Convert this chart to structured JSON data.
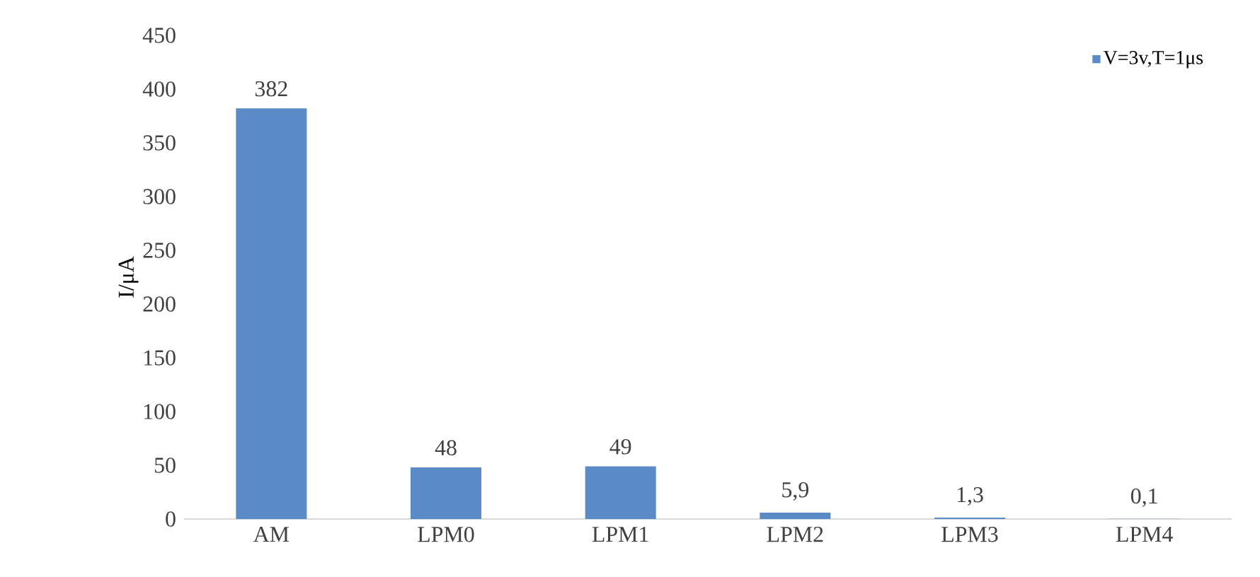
{
  "chart_data": {
    "type": "bar",
    "ylabel": "I/μA",
    "categories": [
      "AM",
      "LPM0",
      "LPM1",
      "LPM2",
      "LPM3",
      "LPM4"
    ],
    "series": [
      {
        "name": "V=3v,T=1μs",
        "color": "#5b8bc7",
        "values": [
          382,
          48,
          49,
          5.9,
          1.3,
          0.1
        ],
        "value_labels": [
          "382",
          "48",
          "49",
          "5,9",
          "1,3",
          "0,1"
        ]
      }
    ],
    "ylim": [
      0,
      450
    ],
    "yticks": [
      0,
      50,
      100,
      150,
      200,
      250,
      300,
      350,
      400,
      450
    ],
    "legend": "top right"
  }
}
